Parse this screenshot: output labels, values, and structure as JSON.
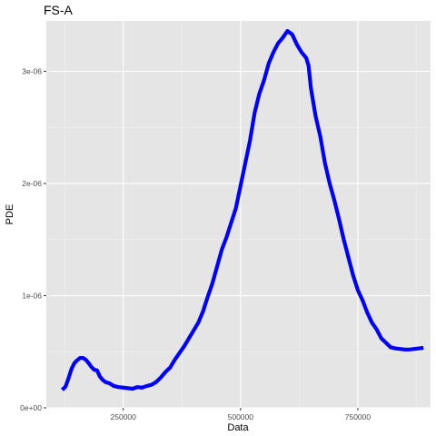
{
  "chart_data": {
    "type": "line",
    "title": "FS-A",
    "xlabel": "Data",
    "ylabel": "PDE",
    "xlim": [
      86000,
      905000
    ],
    "ylim": [
      0,
      3.45e-06
    ],
    "x_ticks": [
      {
        "value": 250000,
        "label": "250000"
      },
      {
        "value": 500000,
        "label": "500000"
      },
      {
        "value": 750000,
        "label": "750000"
      }
    ],
    "y_ticks": [
      {
        "value": 0,
        "label": "0e+00"
      },
      {
        "value": 1e-06,
        "label": "1e-06"
      },
      {
        "value": 2e-06,
        "label": "2e-06"
      },
      {
        "value": 3e-06,
        "label": "3e-06"
      }
    ],
    "grid": true,
    "background": "#e5e5e5",
    "series": [
      {
        "color": "#0000ff",
        "x": [
          120000,
          127000,
          133000,
          140000,
          146000,
          152000,
          158000,
          164000,
          170000,
          176000,
          182000,
          188000,
          194000,
          200000,
          206000,
          212000,
          220000,
          230000,
          240000,
          250000,
          260000,
          270000,
          280000,
          290000,
          300000,
          310000,
          320000,
          330000,
          340000,
          350000,
          360000,
          370000,
          380000,
          390000,
          400000,
          410000,
          420000,
          430000,
          440000,
          450000,
          460000,
          470000,
          480000,
          490000,
          500000,
          510000,
          520000,
          530000,
          540000,
          550000,
          560000,
          570000,
          580000,
          590000,
          600000,
          610000,
          620000,
          630000,
          640000,
          645000,
          650000,
          660000,
          670000,
          680000,
          690000,
          700000,
          710000,
          720000,
          730000,
          740000,
          750000,
          760000,
          770000,
          780000,
          790000,
          800000,
          810000,
          820000,
          830000,
          840000,
          850000,
          860000,
          870000,
          880000,
          890000
        ],
        "y": [
          1.6e-07,
          1.9e-07,
          2.6e-07,
          3.5e-07,
          4e-07,
          4.25e-07,
          4.45e-07,
          4.45e-07,
          4.3e-07,
          4e-07,
          3.65e-07,
          3.4e-07,
          3.35e-07,
          2.8e-07,
          2.5e-07,
          2.3e-07,
          2.2e-07,
          1.95e-07,
          1.85e-07,
          1.8e-07,
          1.75e-07,
          1.7e-07,
          1.85e-07,
          1.8e-07,
          1.95e-07,
          2.05e-07,
          2.3e-07,
          2.7e-07,
          3.2e-07,
          3.6e-07,
          4.3e-07,
          4.9e-07,
          5.5e-07,
          6.2e-07,
          6.9e-07,
          7.6e-07,
          8.6e-07,
          9.9e-07,
          1.11e-06,
          1.26e-06,
          1.41e-06,
          1.52e-06,
          1.65e-06,
          1.78e-06,
          1.98e-06,
          2.18e-06,
          2.38e-06,
          2.63e-06,
          2.8e-06,
          2.92e-06,
          3.07e-06,
          3.17e-06,
          3.25e-06,
          3.3e-06,
          3.36e-06,
          3.33e-06,
          3.24e-06,
          3.17e-06,
          3.12e-06,
          3.05e-06,
          2.85e-06,
          2.6e-06,
          2.42e-06,
          2.18e-06,
          2e-06,
          1.85e-06,
          1.68e-06,
          1.5e-06,
          1.34e-06,
          1.18e-06,
          1.05e-06,
          9.6e-07,
          8.5e-07,
          7.6e-07,
          7e-07,
          6.2e-07,
          5.8e-07,
          5.4e-07,
          5.3e-07,
          5.25e-07,
          5.2e-07,
          5.2e-07,
          5.25e-07,
          5.3e-07,
          5.35e-07
        ]
      }
    ]
  }
}
